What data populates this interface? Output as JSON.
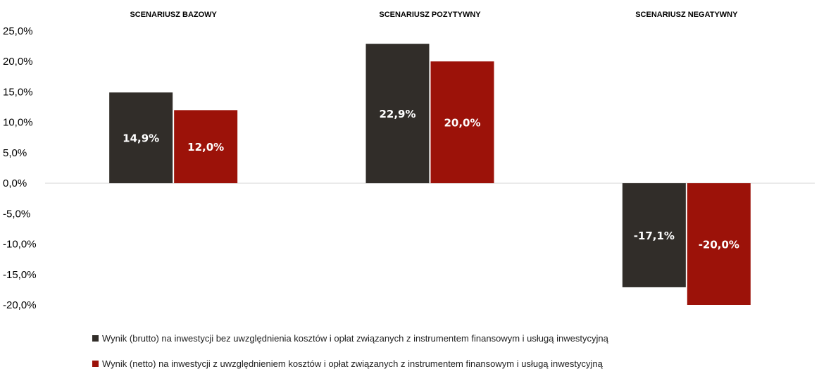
{
  "chart_data": {
    "type": "bar",
    "categories": [
      "SCENARIUSZ BAZOWY",
      "SCENARIUSZ POZYTYWNY",
      "SCENARIUSZ NEGATYWNY"
    ],
    "series": [
      {
        "name": "Wynik (brutto) na inwestycji bez uwzględnienia kosztów i opłat związanych z instrumentem finansowym i usługą inwestycyjną",
        "values": [
          14.9,
          22.9,
          -17.1
        ],
        "labels": [
          "14,9%",
          "22,9%",
          "-17,1%"
        ],
        "color": "#312d29"
      },
      {
        "name": "Wynik (netto) na inwestycji z uwzględnieniem kosztów i opłat związanych z instrumentem finansowym i usługą inwestycyjną",
        "values": [
          12.0,
          20.0,
          -20.0
        ],
        "labels": [
          "12,0%",
          "20,0%",
          "-20,0%"
        ],
        "color": "#9c1209"
      }
    ],
    "ylim": [
      -20,
      25
    ],
    "yticks": [
      25,
      20,
      15,
      10,
      5,
      0,
      -5,
      -10,
      -15,
      -20
    ],
    "ytick_labels": [
      "25,0%",
      "20,0%",
      "15,0%",
      "10,0%",
      "5,0%",
      "0,0%",
      "-5,0%",
      "-10,0%",
      "-15,0%",
      "-20,0%"
    ],
    "grid": false,
    "legend_position": "bottom"
  }
}
